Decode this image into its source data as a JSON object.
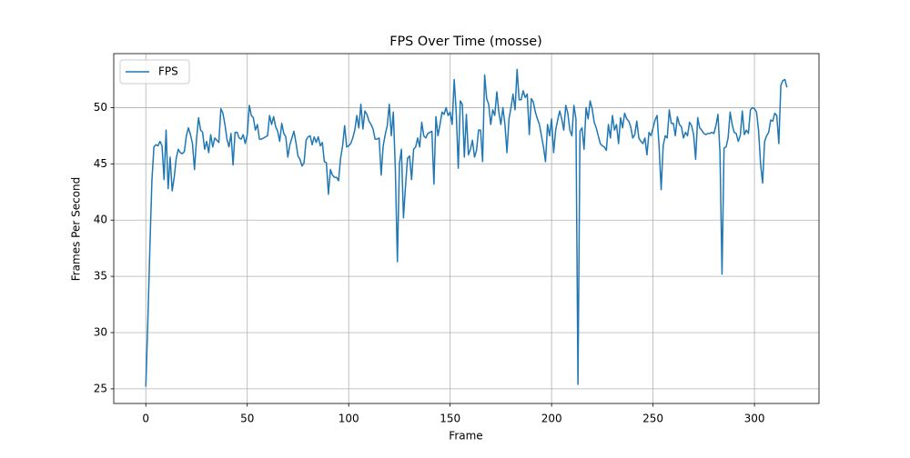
{
  "chart_data": {
    "type": "line",
    "title": "FPS Over Time (mosse)",
    "x_label": "Frame",
    "y_label": "Frames Per Second",
    "x": [
      0,
      1,
      2,
      3,
      4,
      5,
      6,
      7,
      8,
      9,
      10,
      11,
      12,
      13,
      14,
      15,
      16,
      17,
      18,
      19,
      20,
      21,
      22,
      23,
      24,
      25,
      26,
      27,
      28,
      29,
      30,
      31,
      32,
      33,
      34,
      35,
      36,
      37,
      38,
      39,
      40,
      41,
      42,
      43,
      44,
      45,
      46,
      47,
      48,
      49,
      50,
      51,
      52,
      53,
      54,
      55,
      56,
      57,
      58,
      59,
      60,
      61,
      62,
      63,
      64,
      65,
      66,
      67,
      68,
      69,
      70,
      71,
      72,
      73,
      74,
      75,
      76,
      77,
      78,
      79,
      80,
      81,
      82,
      83,
      84,
      85,
      86,
      87,
      88,
      89,
      90,
      91,
      92,
      93,
      94,
      95,
      96,
      97,
      98,
      99,
      100,
      101,
      102,
      103,
      104,
      105,
      106,
      107,
      108,
      109,
      110,
      111,
      112,
      113,
      114,
      115,
      116,
      117,
      118,
      119,
      120,
      121,
      122,
      123,
      124,
      125,
      126,
      127,
      128,
      129,
      130,
      131,
      132,
      133,
      134,
      135,
      136,
      137,
      138,
      139,
      140,
      141,
      142,
      143,
      144,
      145,
      146,
      147,
      148,
      149,
      150,
      151,
      152,
      153,
      154,
      155,
      156,
      157,
      158,
      159,
      160,
      161,
      162,
      163,
      164,
      165,
      166,
      167,
      168,
      169,
      170,
      171,
      172,
      173,
      174,
      175,
      176,
      177,
      178,
      179,
      180,
      181,
      182,
      183,
      184,
      185,
      186,
      187,
      188,
      189,
      190,
      191,
      192,
      193,
      194,
      195,
      196,
      197,
      198,
      199,
      200,
      201,
      202,
      203,
      204,
      205,
      206,
      207,
      208,
      209,
      210,
      211,
      212,
      213,
      214,
      215,
      216,
      217,
      218,
      219,
      220,
      221,
      222,
      223,
      224,
      225,
      226,
      227,
      228,
      229,
      230,
      231,
      232,
      233,
      234,
      235,
      236,
      237,
      238,
      239,
      240,
      241,
      242,
      243,
      244,
      245,
      246,
      247,
      248,
      249,
      250,
      251,
      252,
      253,
      254,
      255,
      256,
      257,
      258,
      259,
      260,
      261,
      262,
      263,
      264,
      265,
      266,
      267,
      268,
      269,
      270,
      271,
      272,
      273,
      274,
      275,
      276,
      277,
      278,
      279,
      280,
      281,
      282,
      283,
      284,
      285,
      286,
      287,
      288,
      289,
      290,
      291,
      292,
      293,
      294,
      295,
      296,
      297,
      298,
      299,
      300,
      301,
      302,
      303,
      304,
      305,
      306,
      307,
      308,
      309,
      310,
      311,
      312,
      313,
      314,
      315,
      316
    ],
    "series": [
      {
        "name": "FPS",
        "color": "#1f77b4",
        "values": [
          25.2,
          31.0,
          37.5,
          43.5,
          46.5,
          46.7,
          46.6,
          47.0,
          46.6,
          43.6,
          48.0,
          42.8,
          45.6,
          42.6,
          43.8,
          45.5,
          46.3,
          46.0,
          45.9,
          46.1,
          47.5,
          48.2,
          47.6,
          46.8,
          44.5,
          47.2,
          49.1,
          48.0,
          47.8,
          46.3,
          47.0,
          46.0,
          47.6,
          46.5,
          47.3,
          47.1,
          46.9,
          49.9,
          49.5,
          48.5,
          47.2,
          46.5,
          47.7,
          44.9,
          47.8,
          47.8,
          47.3,
          47.2,
          47.6,
          46.8,
          47.6,
          50.2,
          49.3,
          49.1,
          48.0,
          48.5,
          47.2,
          47.2,
          47.3,
          47.4,
          47.5,
          49.3,
          48.5,
          49.2,
          48.3,
          47.9,
          47.0,
          48.6,
          47.7,
          47.4,
          45.6,
          46.7,
          47.3,
          47.9,
          46.9,
          45.7,
          45.4,
          44.8,
          45.1,
          47.1,
          47.4,
          47.5,
          46.7,
          47.4,
          46.9,
          47.4,
          46.6,
          46.9,
          45.2,
          45.1,
          42.3,
          44.5,
          44.0,
          43.8,
          43.8,
          43.5,
          45.5,
          46.6,
          48.4,
          46.5,
          46.6,
          46.8,
          47.3,
          48.0,
          49.3,
          48.2,
          50.3,
          48.1,
          49.7,
          49.4,
          48.8,
          48.5,
          48.1,
          47.2,
          47.2,
          47.3,
          44.0,
          46.6,
          47.6,
          48.4,
          50.3,
          47.5,
          49.6,
          44.5,
          36.3,
          45.0,
          46.3,
          40.2,
          43.0,
          45.5,
          45.7,
          43.6,
          46.3,
          46.5,
          47.3,
          46.5,
          48.7,
          47.5,
          47.3,
          47.7,
          47.8,
          47.9,
          43.2,
          49.2,
          47.5,
          48.5,
          49.6,
          49.4,
          50.0,
          49.3,
          49.6,
          48.5,
          52.5,
          49.6,
          44.6,
          50.6,
          50.3,
          45.6,
          49.4,
          45.8,
          46.3,
          47.1,
          45.6,
          46.2,
          48.0,
          48.0,
          45.2,
          52.9,
          50.8,
          50.3,
          48.5,
          49.8,
          49.3,
          51.4,
          49.6,
          48.5,
          50.0,
          48.5,
          46.0,
          49.0,
          50.0,
          51.2,
          49.8,
          53.4,
          50.7,
          50.7,
          51.5,
          50.9,
          51.2,
          47.6,
          50.8,
          50.5,
          49.6,
          49.0,
          48.5,
          47.5,
          46.5,
          45.2,
          48.5,
          47.5,
          49.0,
          46.0,
          48.0,
          48.9,
          49.7,
          49.0,
          48.0,
          50.2,
          49.5,
          48.0,
          47.5,
          50.2,
          49.0,
          25.4,
          47.9,
          48.2,
          46.3,
          50.0,
          49.0,
          50.6,
          49.9,
          48.7,
          48.2,
          47.5,
          46.8,
          46.6,
          46.5,
          46.2,
          48.5,
          47.3,
          49.3,
          48.0,
          48.5,
          46.8,
          49.1,
          48.2,
          49.5,
          49.0,
          48.8,
          48.3,
          47.3,
          47.6,
          48.8,
          47.3,
          47.0,
          46.8,
          47.3,
          45.8,
          47.8,
          47.5,
          48.2,
          48.9,
          49.3,
          46.5,
          42.7,
          46.6,
          47.5,
          47.3,
          49.8,
          48.6,
          48.6,
          47.5,
          49.2,
          48.5,
          48.3,
          47.3,
          47.8,
          47.5,
          48.7,
          48.4,
          47.6,
          45.4,
          49.1,
          48.2,
          48.0,
          47.7,
          47.6,
          47.7,
          47.7,
          47.8,
          47.7,
          48.4,
          49.4,
          46.0,
          35.2,
          46.4,
          46.5,
          47.3,
          49.6,
          48.5,
          47.8,
          47.7,
          47.0,
          47.5,
          49.7,
          47.6,
          48.0,
          47.7,
          49.8,
          50.0,
          49.9,
          49.6,
          48.0,
          45.0,
          43.3,
          47.0,
          47.5,
          47.8,
          48.9,
          48.8,
          49.5,
          49.3,
          46.8,
          52.0,
          52.4,
          52.5,
          51.8
        ]
      }
    ],
    "xlim": [
      -15.8,
      331.8
    ],
    "ylim": [
      23.7,
      54.8
    ],
    "xticks": [
      0,
      50,
      100,
      150,
      200,
      250,
      300
    ],
    "yticks": [
      25,
      30,
      35,
      40,
      45,
      50
    ],
    "grid": true,
    "legend": "upper left"
  }
}
